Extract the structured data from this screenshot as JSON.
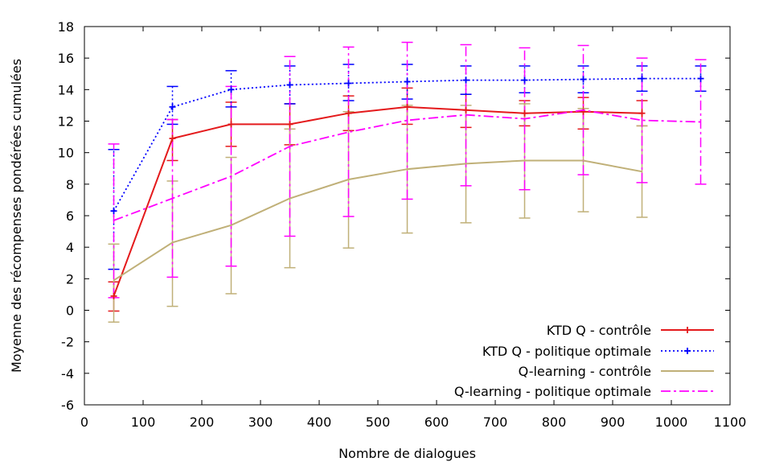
{
  "chart_data": {
    "type": "line",
    "title": "",
    "xlabel": "Nombre de dialogues",
    "ylabel": "Moyenne des récompenses pondérées cumulées",
    "xlim": [
      0,
      1100
    ],
    "ylim": [
      -6,
      18
    ],
    "xticks": [
      0,
      100,
      200,
      300,
      400,
      500,
      600,
      700,
      800,
      900,
      1000,
      1100
    ],
    "yticks": [
      -6,
      -4,
      -2,
      0,
      2,
      4,
      6,
      8,
      10,
      12,
      14,
      16,
      18
    ],
    "grid": false,
    "legend_position": "bottom-right",
    "series": [
      {
        "name": "KTD Q - contrôle",
        "color": "#e41a1c",
        "line_style": "solid",
        "marker": "plus",
        "x": [
          50,
          150,
          250,
          350,
          450,
          550,
          650,
          750,
          850,
          950
        ],
        "y": [
          0.9,
          10.9,
          11.8,
          11.8,
          12.5,
          12.9,
          12.7,
          12.5,
          12.6,
          12.5
        ],
        "err_low": [
          -0.05,
          9.5,
          10.4,
          10.5,
          11.4,
          11.8,
          11.6,
          11.7,
          11.5,
          11.7
        ],
        "err_high": [
          1.8,
          12.1,
          13.2,
          13.1,
          13.6,
          14.1,
          13.7,
          13.3,
          13.5,
          13.3
        ]
      },
      {
        "name": "KTD Q - politique optimale",
        "color": "#0000ff",
        "line_style": "dotted",
        "marker": "plus",
        "x": [
          50,
          150,
          250,
          350,
          450,
          550,
          650,
          750,
          850,
          950,
          1050
        ],
        "y": [
          6.3,
          12.9,
          14.0,
          14.3,
          14.4,
          14.5,
          14.6,
          14.6,
          14.65,
          14.7,
          14.7
        ],
        "err_low": [
          2.6,
          11.8,
          12.9,
          13.1,
          13.3,
          13.4,
          13.7,
          13.8,
          13.8,
          13.9,
          13.9
        ],
        "err_high": [
          10.2,
          14.2,
          15.2,
          15.5,
          15.6,
          15.6,
          15.5,
          15.5,
          15.5,
          15.5,
          15.5
        ]
      },
      {
        "name": "Q-learning - contrôle",
        "color": "#c0b078",
        "line_style": "solid",
        "marker": "none",
        "x": [
          50,
          150,
          250,
          350,
          450,
          550,
          650,
          750,
          850,
          950
        ],
        "y": [
          1.9,
          4.3,
          5.4,
          7.1,
          8.3,
          8.95,
          9.3,
          9.5,
          9.5,
          8.8
        ],
        "err_low": [
          -0.75,
          0.25,
          1.05,
          2.7,
          3.95,
          4.9,
          5.55,
          5.85,
          6.25,
          5.9
        ],
        "err_high": [
          4.2,
          8.2,
          9.7,
          11.5,
          12.6,
          13.0,
          13.0,
          13.1,
          12.8,
          11.7
        ]
      },
      {
        "name": "Q-learning - politique optimale",
        "color": "#ff00ff",
        "line_style": "dashdot",
        "marker": "none",
        "x": [
          50,
          150,
          250,
          350,
          450,
          550,
          650,
          750,
          850,
          950,
          1050
        ],
        "y": [
          5.7,
          7.1,
          8.5,
          10.4,
          11.3,
          12.05,
          12.4,
          12.15,
          12.7,
          12.05,
          11.95
        ],
        "err_low": [
          0.8,
          2.1,
          2.8,
          4.7,
          5.95,
          7.05,
          7.9,
          7.65,
          8.6,
          8.1,
          8.0
        ],
        "err_high": [
          10.55,
          12.1,
          14.2,
          16.1,
          16.7,
          17.0,
          16.85,
          16.65,
          16.8,
          16.0,
          15.9
        ]
      }
    ]
  }
}
